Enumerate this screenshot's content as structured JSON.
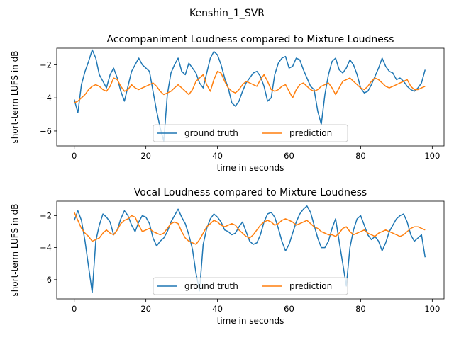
{
  "figure": {
    "suptitle": "Kenshin_1_SVR"
  },
  "chart_data": [
    {
      "type": "line",
      "title": "Accompaniment Loudness compared to Mixture Loudness",
      "xlabel": "time in seconds",
      "ylabel": "short-term LUFS in dB",
      "xlim": [
        -4.9,
        103.3
      ],
      "ylim": [
        -6.9,
        -1.0
      ],
      "xticks": [
        0,
        20,
        40,
        60,
        80,
        100
      ],
      "yticks": [
        -6,
        -4,
        -2
      ],
      "grid": false,
      "legend": {
        "placement": "lower center",
        "columns": 2
      },
      "colors": {
        "ground_truth": "#1f77b4",
        "prediction": "#ff7f0e"
      },
      "x": [
        0,
        1,
        2,
        3,
        4,
        5,
        6,
        7,
        8,
        9,
        10,
        11,
        12,
        13,
        14,
        15,
        16,
        17,
        18,
        19,
        20,
        21,
        22,
        23,
        24,
        25,
        26,
        27,
        28,
        29,
        30,
        31,
        32,
        33,
        34,
        35,
        36,
        37,
        38,
        39,
        40,
        41,
        42,
        43,
        44,
        45,
        46,
        47,
        48,
        49,
        50,
        51,
        52,
        53,
        54,
        55,
        56,
        57,
        58,
        59,
        60,
        61,
        62,
        63,
        64,
        65,
        66,
        67,
        68,
        69,
        70,
        71,
        72,
        73,
        74,
        75,
        76,
        77,
        78,
        79,
        80,
        81,
        82,
        83,
        84,
        85,
        86,
        87,
        88,
        89,
        90,
        91,
        92,
        93,
        94,
        95,
        96,
        97,
        98
      ],
      "series": [
        {
          "name": "ground truth",
          "values": [
            -4.1,
            -4.9,
            -3.2,
            -2.4,
            -1.8,
            -1.1,
            -1.6,
            -2.6,
            -3.0,
            -3.4,
            -2.6,
            -2.2,
            -2.8,
            -3.6,
            -4.2,
            -3.3,
            -2.4,
            -2.0,
            -1.6,
            -2.0,
            -2.2,
            -2.4,
            -3.6,
            -4.8,
            -5.8,
            -6.6,
            -3.8,
            -2.5,
            -2.0,
            -1.6,
            -2.4,
            -2.6,
            -1.9,
            -2.2,
            -2.5,
            -3.1,
            -3.4,
            -2.5,
            -1.6,
            -1.2,
            -1.4,
            -2.0,
            -2.8,
            -3.4,
            -4.3,
            -4.5,
            -4.2,
            -3.6,
            -3.1,
            -2.8,
            -2.5,
            -2.4,
            -2.7,
            -3.3,
            -4.2,
            -4.0,
            -2.6,
            -1.9,
            -1.6,
            -1.5,
            -2.2,
            -2.1,
            -1.6,
            -1.7,
            -2.3,
            -2.8,
            -3.3,
            -3.5,
            -4.8,
            -5.6,
            -3.8,
            -2.6,
            -1.8,
            -1.6,
            -2.3,
            -2.5,
            -2.2,
            -1.7,
            -2.0,
            -2.6,
            -3.4,
            -3.7,
            -3.6,
            -3.2,
            -2.7,
            -2.2,
            -1.6,
            -2.1,
            -2.4,
            -2.5,
            -2.9,
            -2.8,
            -3.0,
            -3.3,
            -3.5,
            -3.6,
            -3.4,
            -3.1,
            -2.3
          ]
        },
        {
          "name": "prediction",
          "values": [
            -4.3,
            -4.2,
            -4.0,
            -3.8,
            -3.5,
            -3.3,
            -3.2,
            -3.3,
            -3.5,
            -3.6,
            -3.3,
            -2.8,
            -2.9,
            -3.3,
            -3.6,
            -3.5,
            -3.2,
            -3.4,
            -3.5,
            -3.4,
            -3.3,
            -3.2,
            -3.1,
            -3.3,
            -3.6,
            -3.8,
            -3.7,
            -3.6,
            -3.4,
            -3.2,
            -3.4,
            -3.6,
            -3.8,
            -3.5,
            -3.0,
            -2.8,
            -2.6,
            -3.2,
            -3.6,
            -2.9,
            -2.4,
            -2.5,
            -3.0,
            -3.4,
            -3.6,
            -3.7,
            -3.5,
            -3.2,
            -3.0,
            -3.1,
            -3.2,
            -3.3,
            -2.9,
            -2.6,
            -3.0,
            -3.5,
            -3.6,
            -3.5,
            -3.3,
            -3.2,
            -3.6,
            -4.0,
            -3.5,
            -3.2,
            -3.1,
            -3.3,
            -3.5,
            -3.6,
            -3.5,
            -3.3,
            -3.2,
            -3.1,
            -3.4,
            -3.8,
            -3.4,
            -3.0,
            -2.9,
            -2.8,
            -3.0,
            -3.2,
            -3.4,
            -3.5,
            -3.3,
            -3.0,
            -2.8,
            -2.9,
            -3.1,
            -3.3,
            -3.4,
            -3.3,
            -3.2,
            -3.1,
            -3.0,
            -2.9,
            -3.3,
            -3.5,
            -3.5,
            -3.4,
            -3.3
          ]
        }
      ]
    },
    {
      "type": "line",
      "title": "Vocal Loudness compared to Mixture Loudness",
      "xlabel": "time in seconds",
      "ylabel": "short-term LUFS in dB",
      "xlim": [
        -4.9,
        103.3
      ],
      "ylim": [
        -7.2,
        -1.1
      ],
      "xticks": [
        0,
        20,
        40,
        60,
        80,
        100
      ],
      "yticks": [
        -6,
        -4,
        -2
      ],
      "grid": false,
      "legend": {
        "placement": "lower center",
        "columns": 2
      },
      "colors": {
        "ground_truth": "#1f77b4",
        "prediction": "#ff7f0e"
      },
      "x": [
        0,
        1,
        2,
        3,
        4,
        5,
        6,
        7,
        8,
        9,
        10,
        11,
        12,
        13,
        14,
        15,
        16,
        17,
        18,
        19,
        20,
        21,
        22,
        23,
        24,
        25,
        26,
        27,
        28,
        29,
        30,
        31,
        32,
        33,
        34,
        35,
        36,
        37,
        38,
        39,
        40,
        41,
        42,
        43,
        44,
        45,
        46,
        47,
        48,
        49,
        50,
        51,
        52,
        53,
        54,
        55,
        56,
        57,
        58,
        59,
        60,
        61,
        62,
        63,
        64,
        65,
        66,
        67,
        68,
        69,
        70,
        71,
        72,
        73,
        74,
        75,
        76,
        77,
        78,
        79,
        80,
        81,
        82,
        83,
        84,
        85,
        86,
        87,
        88,
        89,
        90,
        91,
        92,
        93,
        94,
        95,
        96,
        97,
        98
      ],
      "series": [
        {
          "name": "ground truth",
          "values": [
            -2.3,
            -1.7,
            -2.3,
            -3.6,
            -5.2,
            -6.8,
            -3.6,
            -2.6,
            -1.9,
            -2.1,
            -2.4,
            -3.2,
            -2.9,
            -2.2,
            -1.7,
            -2.0,
            -2.6,
            -3.0,
            -2.4,
            -2.0,
            -2.1,
            -2.5,
            -3.4,
            -3.9,
            -3.6,
            -3.4,
            -3.0,
            -2.4,
            -2.0,
            -1.6,
            -2.1,
            -2.5,
            -3.2,
            -4.1,
            -5.6,
            -6.7,
            -3.8,
            -2.8,
            -2.2,
            -1.9,
            -2.1,
            -2.4,
            -2.9,
            -3.0,
            -3.2,
            -3.1,
            -2.7,
            -2.4,
            -3.0,
            -3.6,
            -3.8,
            -3.7,
            -3.2,
            -2.4,
            -1.9,
            -1.8,
            -2.1,
            -2.8,
            -3.6,
            -4.2,
            -3.8,
            -3.1,
            -2.4,
            -1.9,
            -1.6,
            -1.4,
            -1.8,
            -2.6,
            -3.4,
            -4.0,
            -4.0,
            -3.6,
            -2.8,
            -2.2,
            -3.6,
            -5.0,
            -6.4,
            -4.0,
            -2.9,
            -2.2,
            -2.0,
            -2.6,
            -3.2,
            -3.5,
            -3.3,
            -3.6,
            -4.2,
            -3.7,
            -3.0,
            -2.6,
            -2.2,
            -2.0,
            -1.9,
            -2.4,
            -3.2,
            -3.6,
            -3.4,
            -3.2,
            -4.6
          ]
        },
        {
          "name": "prediction",
          "values": [
            -1.8,
            -2.3,
            -2.8,
            -3.1,
            -3.3,
            -3.6,
            -3.5,
            -3.4,
            -3.1,
            -2.9,
            -3.1,
            -3.2,
            -2.9,
            -2.5,
            -2.3,
            -2.2,
            -2.0,
            -2.1,
            -2.6,
            -3.0,
            -2.9,
            -2.8,
            -3.0,
            -3.1,
            -3.2,
            -3.1,
            -2.8,
            -2.5,
            -2.4,
            -2.5,
            -3.0,
            -3.4,
            -3.6,
            -3.7,
            -3.8,
            -3.5,
            -3.1,
            -2.7,
            -2.5,
            -2.3,
            -2.4,
            -2.6,
            -2.7,
            -2.6,
            -2.5,
            -2.6,
            -2.9,
            -3.1,
            -3.3,
            -3.4,
            -3.2,
            -2.9,
            -2.6,
            -2.4,
            -2.3,
            -2.4,
            -2.6,
            -2.5,
            -2.3,
            -2.2,
            -2.3,
            -2.4,
            -2.6,
            -2.5,
            -2.4,
            -2.3,
            -2.5,
            -2.7,
            -2.8,
            -3.0,
            -3.1,
            -3.2,
            -3.2,
            -3.3,
            -3.1,
            -2.8,
            -2.7,
            -3.0,
            -3.2,
            -3.1,
            -3.0,
            -2.9,
            -3.1,
            -3.2,
            -3.3,
            -3.1,
            -3.0,
            -2.9,
            -3.0,
            -3.1,
            -3.2,
            -3.3,
            -3.2,
            -3.0,
            -2.8,
            -2.7,
            -2.7,
            -2.8,
            -2.9
          ]
        }
      ]
    }
  ]
}
